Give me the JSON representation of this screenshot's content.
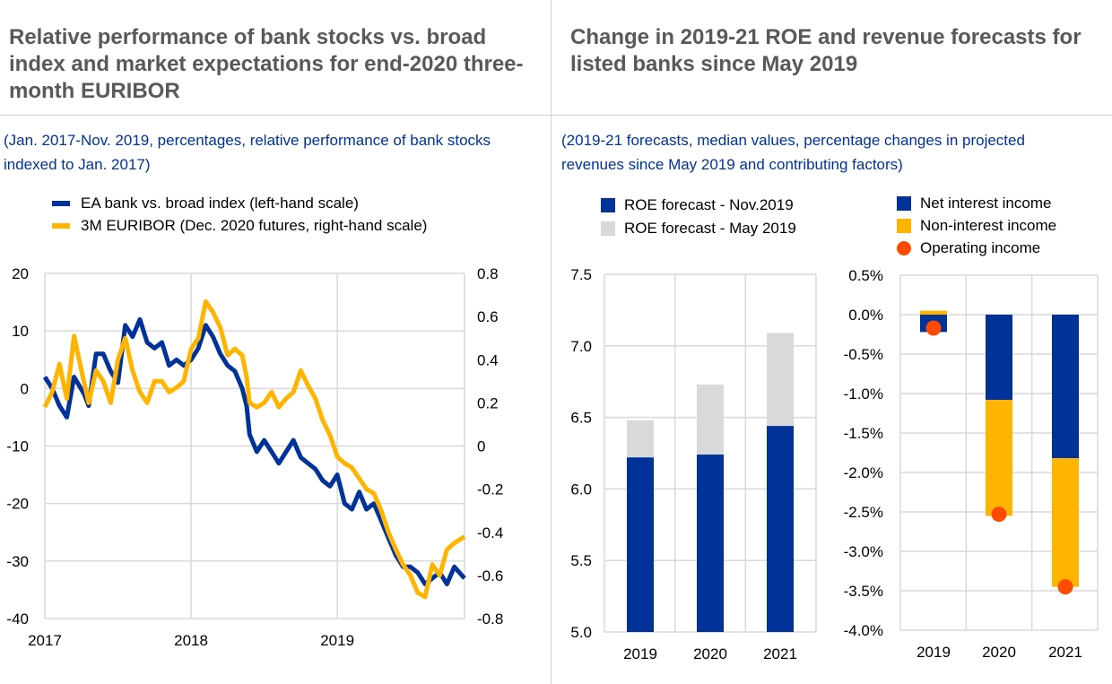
{
  "left": {
    "title": "Relative performance of bank stocks vs. broad index and market expectations for end-2020 three-month EURIBOR",
    "subtitle": "(Jan. 2017-Nov. 2019, percentages, relative performance of bank stocks indexed to Jan. 2017)"
  },
  "right": {
    "title": "Change in 2019-21 ROE and revenue forecasts for listed banks since May 2019",
    "subtitle": "(2019-21 forecasts, median values, percentage changes in projected revenues since May 2019 and contributing factors)"
  },
  "colors": {
    "blue": "#003299",
    "yellow": "#ffb400",
    "grey": "#d9d9d9",
    "orange": "#ff4b00"
  },
  "chart_data": [
    {
      "type": "line",
      "xlim": [
        2017,
        2019.87
      ],
      "x_ticks": [
        "2017",
        "2018",
        "2019"
      ],
      "grid": true,
      "legend": "top-left",
      "y_left": {
        "lim": [
          -40,
          20
        ],
        "ticks": [
          "20",
          "10",
          "0",
          "-10",
          "-20",
          "-30",
          "-40"
        ]
      },
      "y_right": {
        "lim": [
          -0.8,
          0.8
        ],
        "ticks": [
          "0.8",
          "0.6",
          "0.4",
          "0.2",
          "0",
          "-0.2",
          "-0.4",
          "-0.6",
          "-0.8"
        ]
      },
      "series": [
        {
          "name": "EA bank vs. broad index (left-hand scale)",
          "axis": "left",
          "color": "#003299",
          "x": [
            2017,
            2017.05,
            2017.1,
            2017.15,
            2017.2,
            2017.27,
            2017.3,
            2017.35,
            2017.4,
            2017.45,
            2017.5,
            2017.55,
            2017.6,
            2017.65,
            2017.7,
            2017.75,
            2017.8,
            2017.85,
            2017.9,
            2017.95,
            2018,
            2018.05,
            2018.1,
            2018.15,
            2018.2,
            2018.25,
            2018.3,
            2018.35,
            2018.38,
            2018.4,
            2018.45,
            2018.5,
            2018.55,
            2018.6,
            2018.65,
            2018.7,
            2018.75,
            2018.8,
            2018.85,
            2018.9,
            2018.95,
            2019,
            2019.05,
            2019.1,
            2019.15,
            2019.2,
            2019.25,
            2019.3,
            2019.35,
            2019.4,
            2019.45,
            2019.5,
            2019.55,
            2019.6,
            2019.65,
            2019.7,
            2019.75,
            2019.8,
            2019.87
          ],
          "y": [
            2,
            0,
            -3,
            -5,
            2,
            -1,
            -3,
            6,
            6,
            3,
            1,
            11,
            9,
            12,
            8,
            7,
            8,
            4,
            5,
            4,
            5,
            7,
            11,
            9,
            6,
            4,
            3,
            0,
            -3,
            -8,
            -11,
            -9,
            -11,
            -13,
            -11,
            -9,
            -12,
            -13,
            -14,
            -16,
            -17,
            -15,
            -20,
            -21,
            -18,
            -21,
            -20,
            -23,
            -26,
            -29,
            -31,
            -31,
            -32,
            -34,
            -33,
            -32,
            -34,
            -31,
            -33
          ]
        },
        {
          "name": "3M EURIBOR (Dec. 2020 futures, right-hand scale)",
          "axis": "right",
          "color": "#ffb400",
          "x": [
            2017,
            2017.05,
            2017.1,
            2017.15,
            2017.2,
            2017.25,
            2017.3,
            2017.35,
            2017.4,
            2017.45,
            2017.5,
            2017.55,
            2017.6,
            2017.65,
            2017.7,
            2017.75,
            2017.8,
            2017.85,
            2017.9,
            2017.95,
            2018,
            2018.05,
            2018.1,
            2018.15,
            2018.2,
            2018.25,
            2018.3,
            2018.35,
            2018.38,
            2018.4,
            2018.45,
            2018.5,
            2018.55,
            2018.6,
            2018.65,
            2018.7,
            2018.75,
            2018.8,
            2018.85,
            2018.9,
            2018.95,
            2019,
            2019.05,
            2019.1,
            2019.15,
            2019.2,
            2019.25,
            2019.3,
            2019.35,
            2019.4,
            2019.45,
            2019.5,
            2019.55,
            2019.6,
            2019.65,
            2019.7,
            2019.75,
            2019.8,
            2019.87
          ],
          "y": [
            0.18,
            0.25,
            0.38,
            0.22,
            0.51,
            0.35,
            0.2,
            0.35,
            0.3,
            0.2,
            0.4,
            0.5,
            0.35,
            0.25,
            0.2,
            0.3,
            0.3,
            0.25,
            0.27,
            0.3,
            0.45,
            0.5,
            0.67,
            0.62,
            0.55,
            0.42,
            0.45,
            0.42,
            0.32,
            0.2,
            0.18,
            0.2,
            0.25,
            0.18,
            0.22,
            0.25,
            0.35,
            0.28,
            0.22,
            0.12,
            0.05,
            -0.05,
            -0.08,
            -0.1,
            -0.15,
            -0.2,
            -0.22,
            -0.3,
            -0.4,
            -0.48,
            -0.55,
            -0.6,
            -0.68,
            -0.7,
            -0.55,
            -0.6,
            -0.48,
            -0.45,
            -0.42
          ]
        }
      ]
    },
    {
      "type": "bar",
      "stacking": "overlay",
      "categories": [
        "2019",
        "2020",
        "2021"
      ],
      "ylim": [
        5.0,
        7.5
      ],
      "y_ticks": [
        "7.5",
        "7.0",
        "6.5",
        "6.0",
        "5.5",
        "5.0"
      ],
      "grid": true,
      "legend": "top",
      "series": [
        {
          "name": "ROE forecast - May 2019",
          "color": "#d9d9d9",
          "values": [
            6.48,
            6.73,
            7.09
          ]
        },
        {
          "name": "ROE forecast - Nov.2019",
          "color": "#003299",
          "values": [
            6.22,
            6.24,
            6.44
          ]
        }
      ]
    },
    {
      "type": "bar",
      "stacking": "stacked",
      "categories": [
        "2019",
        "2020",
        "2021"
      ],
      "ylim": [
        -4.0,
        0.5
      ],
      "y_ticks": [
        "0.5%",
        "0.0%",
        "-0.5%",
        "-1.0%",
        "-1.5%",
        "-2.0%",
        "-2.5%",
        "-3.0%",
        "-3.5%",
        "-4.0%"
      ],
      "grid": true,
      "legend": "top",
      "series": [
        {
          "name": "Net interest income",
          "color": "#003299",
          "values": [
            -0.22,
            -1.08,
            -1.82
          ]
        },
        {
          "name": "Non-interest income",
          "color": "#ffb400",
          "values": [
            0.05,
            -1.47,
            -1.63
          ]
        },
        {
          "name": "Operating income",
          "color": "#ff4b00",
          "type": "scatter",
          "values": [
            -0.17,
            -2.53,
            -3.45
          ]
        }
      ]
    }
  ]
}
